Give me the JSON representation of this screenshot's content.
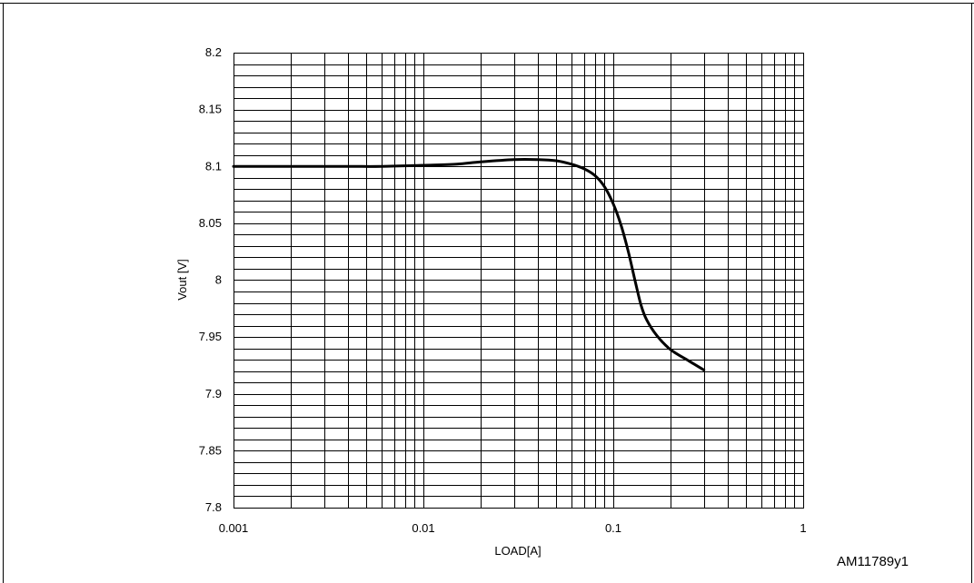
{
  "figure": {
    "identifier": "AM11789y1"
  },
  "chart_data": {
    "type": "line",
    "xlabel": "LOAD[A]",
    "ylabel": "Vout [V]",
    "xscale": "log",
    "xlim": [
      0.001,
      1
    ],
    "ylim": [
      7.8,
      8.2
    ],
    "x_tick_labels": [
      "0.001",
      "0.01",
      "0.1",
      "1"
    ],
    "x_ticks": [
      0.001,
      0.01,
      0.1,
      1
    ],
    "y_tick_labels": [
      "7.8",
      "7.85",
      "7.9",
      "7.95",
      "8",
      "8.05",
      "8.1",
      "8.15",
      "8.2"
    ],
    "y_ticks": [
      7.8,
      7.85,
      7.9,
      7.95,
      8.0,
      8.05,
      8.1,
      8.15,
      8.2
    ],
    "y_minor_step": 0.01,
    "grid": true,
    "line_color": "#000000",
    "series": [
      {
        "x": [
          0.001,
          0.002,
          0.004,
          0.006,
          0.01,
          0.015,
          0.02,
          0.03,
          0.04,
          0.05,
          0.06,
          0.07,
          0.08,
          0.09,
          0.1,
          0.11,
          0.12,
          0.13,
          0.14,
          0.15,
          0.17,
          0.2,
          0.25,
          0.3
        ],
        "y": [
          8.1,
          8.1,
          8.1,
          8.1,
          8.101,
          8.102,
          8.104,
          8.106,
          8.106,
          8.105,
          8.102,
          8.098,
          8.092,
          8.082,
          8.067,
          8.048,
          8.025,
          8.0,
          7.978,
          7.965,
          7.951,
          7.939,
          7.929,
          7.921
        ]
      }
    ]
  }
}
